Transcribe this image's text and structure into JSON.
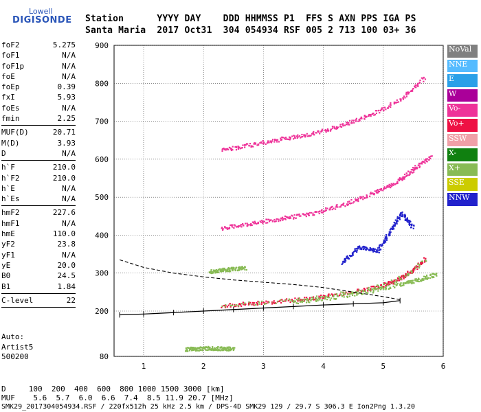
{
  "logo": {
    "line1": "Lowell",
    "line2": "DIGISONDE"
  },
  "header": {
    "row1": "Station      YYYY DAY    DDD HHMMSS P1  FFS S AXN PPS IGA PS",
    "row2": "Santa Maria  2017 Oct31  304 054934 RSF 005 2 713 100 03+ 36"
  },
  "params": {
    "group1": [
      {
        "name": "foF2",
        "value": "5.275"
      },
      {
        "name": "foF1",
        "value": "N/A"
      },
      {
        "name": "foF1p",
        "value": "N/A"
      },
      {
        "name": "foE",
        "value": "N/A"
      },
      {
        "name": "foEp",
        "value": "0.39"
      },
      {
        "name": "fxI",
        "value": "5.93"
      },
      {
        "name": "foEs",
        "value": "N/A"
      },
      {
        "name": "fmin",
        "value": "2.25"
      }
    ],
    "group2": [
      {
        "name": "MUF(D)",
        "value": "20.71"
      },
      {
        "name": "M(D)",
        "value": "3.93"
      },
      {
        "name": "D",
        "value": "N/A"
      }
    ],
    "group3": [
      {
        "name": "h`F",
        "value": "210.0"
      },
      {
        "name": "h`F2",
        "value": "210.0"
      },
      {
        "name": "h`E",
        "value": "N/A"
      },
      {
        "name": "h`Es",
        "value": "N/A"
      }
    ],
    "group4": [
      {
        "name": "hmF2",
        "value": "227.6"
      },
      {
        "name": "hmF1",
        "value": "N/A"
      },
      {
        "name": "hmE",
        "value": "110.0"
      },
      {
        "name": "yF2",
        "value": "23.8"
      },
      {
        "name": "yF1",
        "value": "N/A"
      },
      {
        "name": "yE",
        "value": "20.0"
      },
      {
        "name": "B0",
        "value": "24.5"
      },
      {
        "name": "B1",
        "value": "1.84"
      }
    ],
    "group5": [
      {
        "name": "C-level",
        "value": "22"
      }
    ]
  },
  "auto": {
    "line1": "Auto:",
    "line2": "Artist5",
    "line3": "500200"
  },
  "bottom": {
    "d_row": "D     100  200  400  600  800 1000 1500 3000 [km]",
    "muf_row": "MUF    5.6  5.7  6.0  6.6  7.4  8.5 11.9 20.7 [MHz]",
    "footer": "SMK29_2017304054934.RSF / 220fx512h 25 kHz 2.5 km / DPS-4D SMK29 129 / 29.7 S 306.3 E Ion2Png 1.3.20"
  },
  "legend": [
    {
      "label": "NoVal",
      "color": "#808080"
    },
    {
      "label": "NNE",
      "color": "#55bbff"
    },
    {
      "label": "E",
      "color": "#2aa0e8"
    },
    {
      "label": "W",
      "color": "#aa0099"
    },
    {
      "label": "Vo-",
      "color": "#ee3399"
    },
    {
      "label": "Vo+",
      "color": "#ee1144"
    },
    {
      "label": "SSW",
      "color": "#f0a0a8"
    },
    {
      "label": "X-",
      "color": "#108010"
    },
    {
      "label": "X+",
      "color": "#88bb55"
    },
    {
      "label": "SSE",
      "color": "#cccc00"
    },
    {
      "label": "NNW",
      "color": "#2222cc"
    }
  ],
  "chart_data": {
    "type": "scatter",
    "x_ticks": [
      "1",
      "2",
      "3",
      "4",
      "5",
      "6"
    ],
    "y_ticks": [
      "80",
      "200",
      "300",
      "400",
      "500",
      "600",
      "700",
      "800",
      "900"
    ],
    "xlim": [
      0.6,
      6.0
    ],
    "ylim": [
      80,
      900
    ],
    "grid": true,
    "traces": [
      {
        "name": "O-mode F trace",
        "color": "#ee1144",
        "x": [
          2.3,
          2.8,
          3.3,
          3.8,
          4.3,
          4.8,
          5.1,
          5.3,
          5.5,
          5.7
        ],
        "y": [
          215,
          222,
          228,
          235,
          248,
          262,
          275,
          290,
          310,
          340
        ]
      },
      {
        "name": "X-mode F trace",
        "color": "#88bb55",
        "x": [
          3.5,
          4.2,
          4.8,
          5.3,
          5.6,
          5.9
        ],
        "y": [
          225,
          238,
          255,
          272,
          285,
          300
        ]
      },
      {
        "name": "2nd hop",
        "color": "#ee3399",
        "x": [
          2.3,
          2.8,
          3.3,
          3.8,
          4.3,
          4.8,
          5.2,
          5.5,
          5.8
        ],
        "y": [
          420,
          432,
          445,
          458,
          480,
          510,
          540,
          575,
          610
        ]
      },
      {
        "name": "3rd hop",
        "color": "#ee3399",
        "x": [
          2.3,
          2.8,
          3.3,
          3.8,
          4.3,
          4.8,
          5.3,
          5.7
        ],
        "y": [
          625,
          640,
          655,
          668,
          690,
          720,
          760,
          820
        ]
      },
      {
        "name": "spread",
        "color": "#2222cc",
        "x": [
          4.3,
          4.6,
          4.9,
          5.1,
          5.3,
          5.5
        ],
        "y": [
          330,
          370,
          360,
          410,
          460,
          420
        ]
      },
      {
        "name": "Es",
        "color": "#88bb55",
        "x": [
          1.7,
          1.9,
          2.1,
          2.3,
          2.5
        ],
        "y": [
          100,
          102,
          103,
          102,
          101
        ]
      },
      {
        "name": "low layer",
        "color": "#88bb55",
        "x": [
          2.1,
          2.3,
          2.5,
          2.7
        ],
        "y": [
          305,
          310,
          312,
          315
        ]
      }
    ],
    "profile_curve": {
      "x": [
        0.6,
        1.0,
        1.5,
        2.0,
        2.5,
        3.0,
        3.5,
        4.0,
        4.5,
        5.0,
        5.28
      ],
      "y": [
        190,
        192,
        196,
        200,
        204,
        208,
        212,
        216,
        219,
        222,
        227.6
      ]
    },
    "muf_curve": {
      "x": [
        0.6,
        1.0,
        1.5,
        2.0,
        2.5,
        3.0,
        3.5,
        4.0,
        4.5,
        5.0,
        5.28
      ],
      "y": [
        335,
        315,
        300,
        290,
        282,
        276,
        270,
        262,
        250,
        238,
        230
      ]
    }
  }
}
